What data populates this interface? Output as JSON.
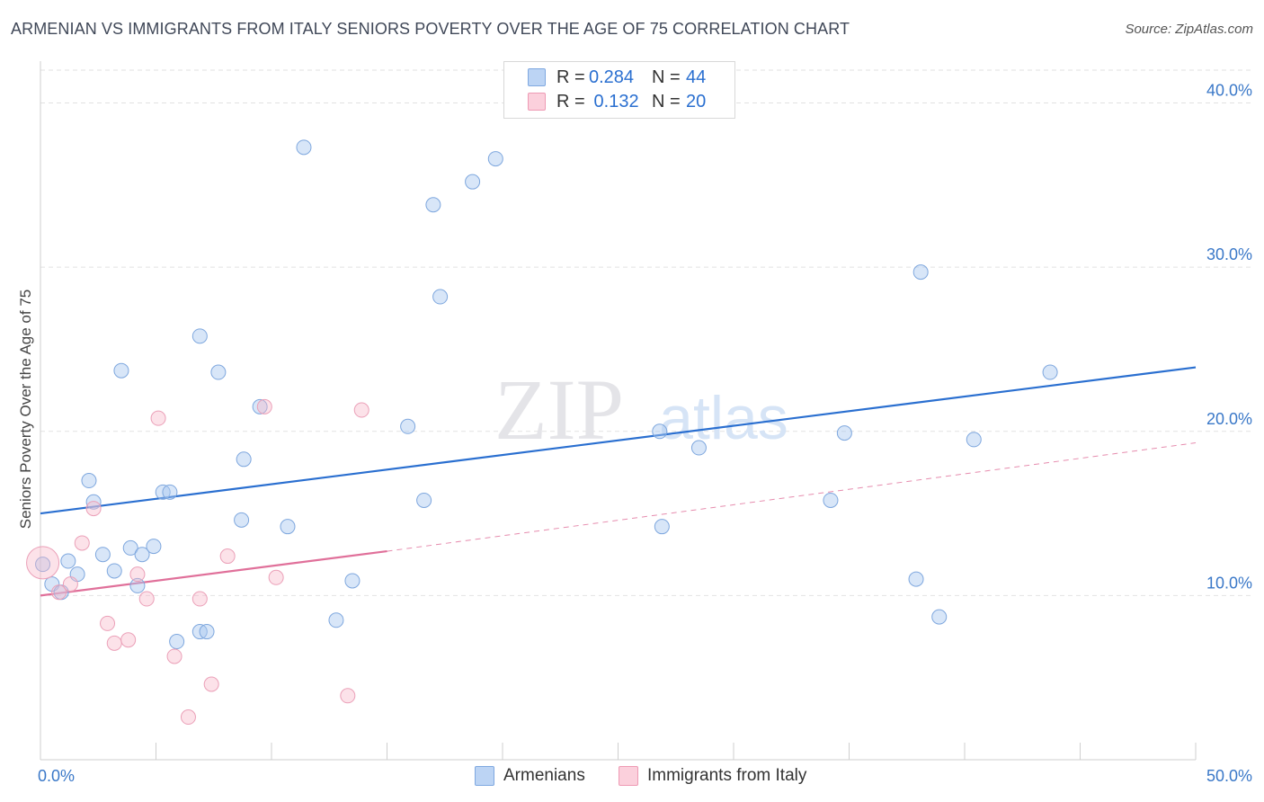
{
  "title": "ARMENIAN VS IMMIGRANTS FROM ITALY SENIORS POVERTY OVER THE AGE OF 75 CORRELATION CHART",
  "source": "Source: ZipAtlas.com",
  "watermark": {
    "zip": "ZIP",
    "atlas": "atlas"
  },
  "legend_top": [
    {
      "r_label": "R =",
      "r_value": "0.284",
      "n_label": "N =",
      "n_value": "44",
      "color": "#a9c8f0"
    },
    {
      "r_label": "R =",
      "r_value": " 0.132",
      "n_label": "N =",
      "n_value": "20",
      "color": "#f7b6c9"
    }
  ],
  "legend_bottom": [
    {
      "label": "Armenians",
      "color": "#a9c8f0"
    },
    {
      "label": "Immigrants from Italy",
      "color": "#f7b6c9"
    }
  ],
  "chart_data": {
    "type": "scatter",
    "title": "ARMENIAN VS IMMIGRANTS FROM ITALY SENIORS POVERTY OVER THE AGE OF 75 CORRELATION CHART",
    "xlabel": "",
    "ylabel": "Seniors Poverty Over the Age of 75",
    "xlim": [
      0,
      50
    ],
    "ylim": [
      0,
      42
    ],
    "x_tick_labels": [
      {
        "value": 0,
        "label": "0.0%"
      },
      {
        "value": 50,
        "label": "50.0%"
      }
    ],
    "y_ticks": [
      {
        "value": 10,
        "label": "10.0%"
      },
      {
        "value": 20,
        "label": "20.0%"
      },
      {
        "value": 30,
        "label": "30.0%"
      },
      {
        "value": 40,
        "label": "40.0%"
      }
    ],
    "grid": true,
    "series": [
      {
        "name": "Armenians",
        "color": "#a9c8f0",
        "line_color": "#2a6fd0",
        "trend": {
          "x0": 0,
          "y0": 15.0,
          "x1": 50,
          "y1": 23.9
        },
        "points": [
          [
            0.1,
            11.9
          ],
          [
            0.5,
            10.7
          ],
          [
            0.9,
            10.2
          ],
          [
            1.2,
            12.1
          ],
          [
            1.6,
            11.3
          ],
          [
            2.1,
            17.0
          ],
          [
            2.3,
            15.7
          ],
          [
            2.7,
            12.5
          ],
          [
            3.2,
            11.5
          ],
          [
            3.5,
            23.7
          ],
          [
            3.9,
            12.9
          ],
          [
            4.2,
            10.6
          ],
          [
            4.4,
            12.5
          ],
          [
            4.9,
            13.0
          ],
          [
            5.3,
            16.3
          ],
          [
            5.6,
            16.3
          ],
          [
            5.9,
            7.2
          ],
          [
            6.9,
            25.8
          ],
          [
            6.9,
            7.8
          ],
          [
            7.2,
            7.8
          ],
          [
            7.7,
            23.6
          ],
          [
            8.7,
            14.6
          ],
          [
            8.8,
            18.3
          ],
          [
            9.5,
            21.5
          ],
          [
            10.7,
            14.2
          ],
          [
            11.4,
            37.3
          ],
          [
            12.8,
            8.5
          ],
          [
            13.5,
            10.9
          ],
          [
            15.9,
            20.3
          ],
          [
            16.6,
            15.8
          ],
          [
            17.0,
            33.8
          ],
          [
            17.3,
            28.2
          ],
          [
            18.7,
            35.2
          ],
          [
            19.7,
            36.6
          ],
          [
            26.8,
            20.0
          ],
          [
            26.9,
            14.2
          ],
          [
            28.5,
            19.0
          ],
          [
            34.2,
            15.8
          ],
          [
            34.8,
            19.9
          ],
          [
            37.9,
            11.0
          ],
          [
            38.1,
            29.7
          ],
          [
            38.9,
            8.7
          ],
          [
            40.4,
            19.5
          ],
          [
            43.7,
            23.6
          ]
        ]
      },
      {
        "name": "Immigrants from Italy",
        "color": "#f7b6c9",
        "line_color": "#e0709a",
        "trend": {
          "x0": 0,
          "y0": 10.0,
          "x1": 15,
          "y1": 12.7
        },
        "trend_ext": {
          "x0": 15,
          "y0": 12.7,
          "x1": 50,
          "y1": 19.3
        },
        "points": [
          [
            0.1,
            12.0
          ],
          [
            0.8,
            10.2
          ],
          [
            1.3,
            10.7
          ],
          [
            1.8,
            13.2
          ],
          [
            2.3,
            15.3
          ],
          [
            2.9,
            8.3
          ],
          [
            3.2,
            7.1
          ],
          [
            3.8,
            7.3
          ],
          [
            4.2,
            11.3
          ],
          [
            4.6,
            9.8
          ],
          [
            5.1,
            20.8
          ],
          [
            5.8,
            6.3
          ],
          [
            6.4,
            2.6
          ],
          [
            6.9,
            9.8
          ],
          [
            7.4,
            4.6
          ],
          [
            8.1,
            12.4
          ],
          [
            9.7,
            21.5
          ],
          [
            10.2,
            11.1
          ],
          [
            13.3,
            3.9
          ],
          [
            13.9,
            21.3
          ]
        ]
      }
    ]
  }
}
